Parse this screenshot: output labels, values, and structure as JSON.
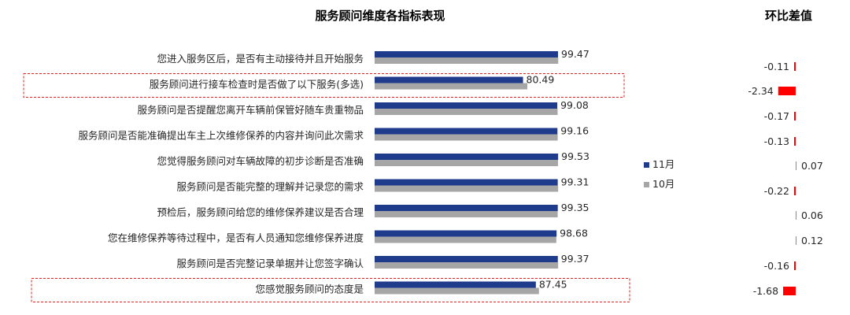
{
  "chart_data": [
    {
      "type": "bar",
      "orientation": "horizontal",
      "title": "服务顾问维度各指标表现",
      "categories": [
        "您进入服务区后，是否有主动接待并且开始服务",
        "服务顾问进行接车检查时是否做了以下服务(多选)",
        "服务顾问是否提醒您离开车辆前保管好随车贵重物品",
        "服务顾问是否能准确提出车主上次维修保养的内容并询问此次需求",
        "您觉得服务顾问对车辆故障的初步诊断是否准确",
        "服务顾问是否能完整的理解并记录您的需求",
        "预检后，服务顾问给您的维修保养建议是否合理",
        "您在维修保养等待过程中，是否有人员通知您维修保养进度",
        "服务顾问是否完整记录单据并让您签字确认",
        "您感觉服务顾问的态度是"
      ],
      "series": [
        {
          "name": "11月",
          "color": "#1f3b8c",
          "values": [
            99.47,
            80.49,
            99.08,
            99.16,
            99.53,
            99.31,
            99.35,
            98.68,
            99.37,
            87.45
          ]
        },
        {
          "name": "10月",
          "color": "#a6a6a6",
          "values": [
            99.58,
            82.83,
            99.25,
            99.29,
            99.46,
            99.53,
            99.29,
            98.56,
            99.53,
            89.13
          ]
        }
      ],
      "data_labels_series": "11月",
      "highlighted_categories": [
        1,
        9
      ],
      "highlight_color": "#e02020",
      "legend_position": "right",
      "grid": false,
      "xlim": [
        0,
        100
      ]
    },
    {
      "type": "bar",
      "orientation": "horizontal",
      "title": "环比差值",
      "values": [
        -0.11,
        -2.34,
        -0.17,
        -0.13,
        0.07,
        -0.22,
        0.06,
        0.12,
        -0.16,
        -1.68
      ],
      "labels": [
        "-0.11",
        "-2.34",
        "-0.17",
        "-0.13",
        "0.07",
        "-0.22",
        "0.06",
        "0.12",
        "-0.16",
        "-1.68"
      ],
      "negative_color": "#ff0000",
      "grid": false
    }
  ]
}
